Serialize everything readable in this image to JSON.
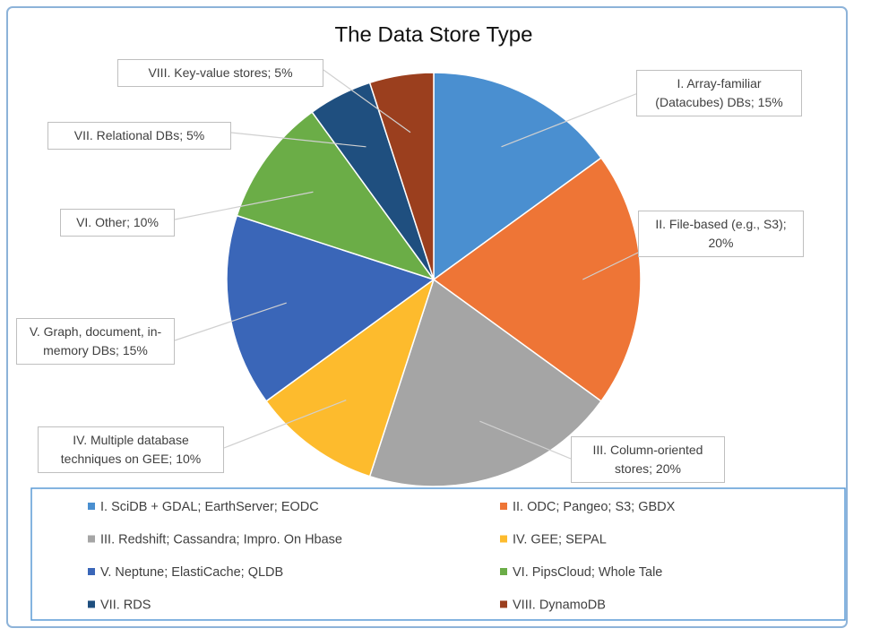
{
  "chart_data": {
    "type": "pie",
    "title": "The Data Store Type",
    "categories": [
      "I. SciDB + GDAL; EarthServer; EODC",
      "II. ODC; Pangeo; S3; GBDX",
      "III. Redshift; Cassandra; Impro. On Hbase",
      "IV. GEE; SEPAL",
      "V. Neptune; ElastiCache; QLDB",
      "VI. PipsCloud; Whole Tale",
      "VII. RDS",
      "VIII. DynamoDB"
    ],
    "values": [
      15,
      20,
      20,
      10,
      15,
      10,
      5,
      5
    ],
    "value_labels": [
      "I. Array-familiar (Datacubes) DBs; 15%",
      "II. File-based (e.g., S3); 20%",
      "III. Column-oriented stores; 20%",
      "IV. Multiple database techniques on GEE; 10%",
      "V. Graph, document, in-memory DBs; 15%",
      "VI. Other; 10%",
      "VII. Relational DBs; 5%",
      "VIII. Key-value stores; 5%"
    ],
    "colors": [
      "#4a8fd0",
      "#ee7536",
      "#a5a5a5",
      "#fdbb2d",
      "#3a66b8",
      "#6bad47",
      "#1f4f7f",
      "#9b3f1e"
    ]
  }
}
